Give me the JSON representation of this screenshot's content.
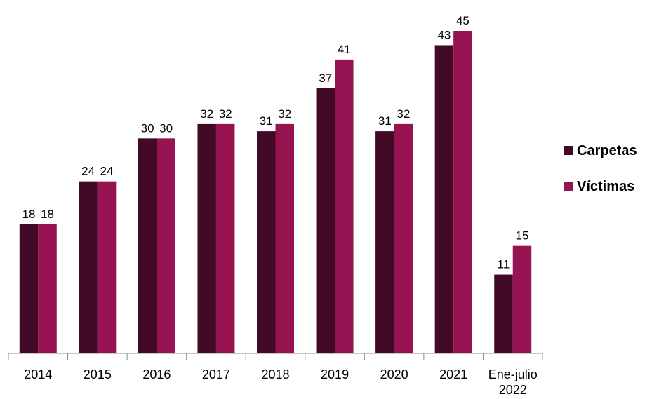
{
  "chart_data": {
    "type": "bar",
    "categories": [
      [
        "2014"
      ],
      [
        "2015"
      ],
      [
        "2016"
      ],
      [
        "2017"
      ],
      [
        "2018"
      ],
      [
        "2019"
      ],
      [
        "2020"
      ],
      [
        "2021"
      ],
      [
        "Ene-julio",
        "2022"
      ]
    ],
    "series": [
      {
        "name": "Carpetas",
        "color": "#420a26",
        "values": [
          18,
          24,
          30,
          32,
          31,
          37,
          31,
          43,
          11
        ]
      },
      {
        "name": "Víctimas",
        "color": "#961452",
        "values": [
          18,
          24,
          30,
          32,
          32,
          41,
          32,
          45,
          15
        ]
      }
    ],
    "ylim": [
      0,
      45
    ],
    "grid": false,
    "legend_position": "right"
  }
}
